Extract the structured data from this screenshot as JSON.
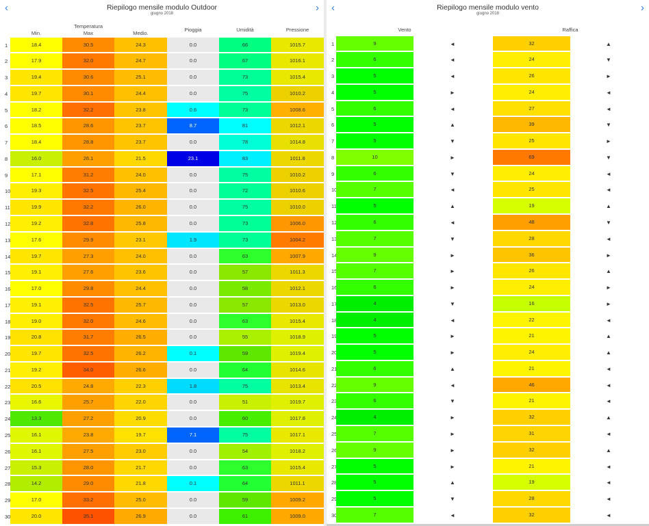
{
  "left": {
    "title": "Riepilogo mensile modulo Outdoor",
    "subtitle": "giugno 2018",
    "prev_label": "‹",
    "next_label": "›",
    "headers": {
      "min": "Min.",
      "max_top": "Temperatura",
      "max": "Max",
      "avg": "Medio.",
      "rain": "Pioggia",
      "hum": "Umidità",
      "press": "Pressione"
    },
    "rows": [
      {
        "day": "1",
        "min": "18.4",
        "max": "30.5",
        "avg": "24.3",
        "rain": "0.0",
        "hum": "66",
        "press": "1015.7"
      },
      {
        "day": "2",
        "min": "17.9",
        "max": "32.0",
        "avg": "24.7",
        "rain": "0.0",
        "hum": "67",
        "press": "1016.1"
      },
      {
        "day": "3",
        "min": "19.4",
        "max": "30.6",
        "avg": "25.1",
        "rain": "0.0",
        "hum": "73",
        "press": "1015.4"
      },
      {
        "day": "4",
        "min": "19.7",
        "max": "30.1",
        "avg": "24.4",
        "rain": "0.0",
        "hum": "75",
        "press": "1010.2"
      },
      {
        "day": "5",
        "min": "18.2",
        "max": "32.2",
        "avg": "23.8",
        "rain": "0.6",
        "hum": "73",
        "press": "1008.6"
      },
      {
        "day": "6",
        "min": "18.5",
        "max": "28.6",
        "avg": "23.7",
        "rain": "8.7",
        "hum": "81",
        "press": "1012.1"
      },
      {
        "day": "7",
        "min": "18.4",
        "max": "28.8",
        "avg": "23.7",
        "rain": "0.0",
        "hum": "78",
        "press": "1014.8"
      },
      {
        "day": "8",
        "min": "16.0",
        "max": "26.1",
        "avg": "21.5",
        "rain": "23.1",
        "hum": "83",
        "press": "1011.8"
      },
      {
        "day": "9",
        "min": "17.1",
        "max": "31.2",
        "avg": "24.0",
        "rain": "0.0",
        "hum": "75",
        "press": "1010.2"
      },
      {
        "day": "10",
        "min": "19.3",
        "max": "32.5",
        "avg": "25.4",
        "rain": "0.0",
        "hum": "72",
        "press": "1010.6"
      },
      {
        "day": "11",
        "min": "19.9",
        "max": "32.2",
        "avg": "26.0",
        "rain": "0.0",
        "hum": "75",
        "press": "1010.0"
      },
      {
        "day": "12",
        "min": "19.2",
        "max": "32.8",
        "avg": "25.8",
        "rain": "0.0",
        "hum": "73",
        "press": "1006.0"
      },
      {
        "day": "13",
        "min": "17.6",
        "max": "29.9",
        "avg": "23.1",
        "rain": "1.9",
        "hum": "73",
        "press": "1004.2"
      },
      {
        "day": "14",
        "min": "19.7",
        "max": "27.3",
        "avg": "24.0",
        "rain": "0.0",
        "hum": "63",
        "press": "1007.9"
      },
      {
        "day": "15",
        "min": "19.1",
        "max": "27.6",
        "avg": "23.6",
        "rain": "0.0",
        "hum": "57",
        "press": "1011.3"
      },
      {
        "day": "16",
        "min": "17.0",
        "max": "29.8",
        "avg": "24.4",
        "rain": "0.0",
        "hum": "58",
        "press": "1012.1"
      },
      {
        "day": "17",
        "min": "19.1",
        "max": "32.5",
        "avg": "25.7",
        "rain": "0.0",
        "hum": "57",
        "press": "1013.0"
      },
      {
        "day": "18",
        "min": "19.0",
        "max": "32.0",
        "avg": "24.6",
        "rain": "0.0",
        "hum": "63",
        "press": "1015.4"
      },
      {
        "day": "19",
        "min": "20.8",
        "max": "31.7",
        "avg": "26.5",
        "rain": "0.0",
        "hum": "55",
        "press": "1018.9"
      },
      {
        "day": "20",
        "min": "19.7",
        "max": "32.5",
        "avg": "26.2",
        "rain": "0.1",
        "hum": "59",
        "press": "1019.4"
      },
      {
        "day": "21",
        "min": "19.2",
        "max": "34.0",
        "avg": "26.6",
        "rain": "0.0",
        "hum": "64",
        "press": "1014.6"
      },
      {
        "day": "22",
        "min": "20.5",
        "max": "24.8",
        "avg": "22.3",
        "rain": "1.8",
        "hum": "75",
        "press": "1013.4"
      },
      {
        "day": "23",
        "min": "16.6",
        "max": "25.7",
        "avg": "22.0",
        "rain": "0.0",
        "hum": "51",
        "press": "1019.7"
      },
      {
        "day": "24",
        "min": "13.3",
        "max": "27.2",
        "avg": "20.9",
        "rain": "0.0",
        "hum": "60",
        "press": "1017.8"
      },
      {
        "day": "25",
        "min": "16.1",
        "max": "23.8",
        "avg": "19.7",
        "rain": "7.1",
        "hum": "75",
        "press": "1017.1"
      },
      {
        "day": "26",
        "min": "16.1",
        "max": "27.5",
        "avg": "23.0",
        "rain": "0.0",
        "hum": "54",
        "press": "1018.2"
      },
      {
        "day": "27",
        "min": "15.3",
        "max": "28.0",
        "avg": "21.7",
        "rain": "0.0",
        "hum": "63",
        "press": "1015.4"
      },
      {
        "day": "28",
        "min": "14.2",
        "max": "29.0",
        "avg": "21.8",
        "rain": "0.1",
        "hum": "64",
        "press": "1011.1"
      },
      {
        "day": "29",
        "min": "17.0",
        "max": "33.2",
        "avg": "25.0",
        "rain": "0.0",
        "hum": "59",
        "press": "1009.2"
      },
      {
        "day": "30",
        "min": "20.0",
        "max": "35.1",
        "avg": "26.9",
        "rain": "0.0",
        "hum": "61",
        "press": "1009.0"
      }
    ]
  },
  "right": {
    "title": "Riepilogo mensile modulo vento",
    "subtitle": "giugno 2018",
    "prev_label": "‹",
    "next_label": "›",
    "headers": {
      "wind": "Vento",
      "gust": "Raffica"
    },
    "rows": [
      {
        "day": "1",
        "wind": "9",
        "wdir": "◄",
        "gust": "32",
        "gdir": "▲"
      },
      {
        "day": "2",
        "wind": "6",
        "wdir": "◄",
        "gust": "24",
        "gdir": "▼"
      },
      {
        "day": "3",
        "wind": "5",
        "wdir": "◄",
        "gust": "26",
        "gdir": "►"
      },
      {
        "day": "4",
        "wind": "5",
        "wdir": "►",
        "gust": "24",
        "gdir": "◄"
      },
      {
        "day": "5",
        "wind": "6",
        "wdir": "◄",
        "gust": "27",
        "gdir": "◄"
      },
      {
        "day": "6",
        "wind": "5",
        "wdir": "▲",
        "gust": "39",
        "gdir": "▼"
      },
      {
        "day": "7",
        "wind": "5",
        "wdir": "▼",
        "gust": "25",
        "gdir": "►"
      },
      {
        "day": "8",
        "wind": "10",
        "wdir": "►",
        "gust": "69",
        "gdir": "▼"
      },
      {
        "day": "9",
        "wind": "6",
        "wdir": "▼",
        "gust": "24",
        "gdir": "◄"
      },
      {
        "day": "10",
        "wind": "7",
        "wdir": "◄",
        "gust": "25",
        "gdir": "◄"
      },
      {
        "day": "11",
        "wind": "5",
        "wdir": "▲",
        "gust": "19",
        "gdir": "▲"
      },
      {
        "day": "12",
        "wind": "6",
        "wdir": "◄",
        "gust": "48",
        "gdir": "▼"
      },
      {
        "day": "13",
        "wind": "7",
        "wdir": "▼",
        "gust": "28",
        "gdir": "◄"
      },
      {
        "day": "14",
        "wind": "9",
        "wdir": "►",
        "gust": "36",
        "gdir": "►"
      },
      {
        "day": "15",
        "wind": "7",
        "wdir": "►",
        "gust": "26",
        "gdir": "▲"
      },
      {
        "day": "16",
        "wind": "6",
        "wdir": "►",
        "gust": "24",
        "gdir": "►"
      },
      {
        "day": "17",
        "wind": "4",
        "wdir": "▼",
        "gust": "16",
        "gdir": "►"
      },
      {
        "day": "18",
        "wind": "4",
        "wdir": "◄",
        "gust": "22",
        "gdir": "◄"
      },
      {
        "day": "19",
        "wind": "5",
        "wdir": "►",
        "gust": "21",
        "gdir": "▲"
      },
      {
        "day": "20",
        "wind": "5",
        "wdir": "►",
        "gust": "24",
        "gdir": "▲"
      },
      {
        "day": "21",
        "wind": "6",
        "wdir": "▲",
        "gust": "21",
        "gdir": "◄"
      },
      {
        "day": "22",
        "wind": "9",
        "wdir": "◄",
        "gust": "46",
        "gdir": "◄"
      },
      {
        "day": "23",
        "wind": "6",
        "wdir": "▼",
        "gust": "21",
        "gdir": "◄"
      },
      {
        "day": "24",
        "wind": "4",
        "wdir": "►",
        "gust": "32",
        "gdir": "▲"
      },
      {
        "day": "25",
        "wind": "7",
        "wdir": "►",
        "gust": "31",
        "gdir": "◄"
      },
      {
        "day": "26",
        "wind": "9",
        "wdir": "►",
        "gust": "32",
        "gdir": "▲"
      },
      {
        "day": "27",
        "wind": "5",
        "wdir": "►",
        "gust": "21",
        "gdir": "◄"
      },
      {
        "day": "28",
        "wind": "5",
        "wdir": "▲",
        "gust": "19",
        "gdir": "◄"
      },
      {
        "day": "29",
        "wind": "5",
        "wdir": "▼",
        "gust": "28",
        "gdir": "◄"
      },
      {
        "day": "30",
        "wind": "7",
        "wdir": "◄",
        "gust": "32",
        "gdir": "◄"
      }
    ]
  },
  "colors": {
    "min": [
      "#ffff00",
      "#ffff00",
      "#ffe600",
      "#ffe600",
      "#ffff00",
      "#ffff00",
      "#ffff00",
      "#c8f000",
      "#ffff00",
      "#ffef00",
      "#ffe600",
      "#ffef00",
      "#ffff00",
      "#ffe600",
      "#ffef00",
      "#ffff00",
      "#ffef00",
      "#ffef00",
      "#ffe200",
      "#ffe600",
      "#ffef00",
      "#ffe200",
      "#e8f700",
      "#4ee800",
      "#dff700",
      "#dff700",
      "#c8f000",
      "#b2ed00",
      "#ffff00",
      "#ffe600"
    ],
    "max": [
      "#ff8c00",
      "#ff7800",
      "#ff8c00",
      "#ff8c00",
      "#ff6e00",
      "#ff9600",
      "#ff9600",
      "#ffa000",
      "#ff7d00",
      "#ff7300",
      "#ff7800",
      "#ff7300",
      "#ff8c00",
      "#ffa000",
      "#ffa000",
      "#ff8c00",
      "#ff7300",
      "#ff7800",
      "#ff7d00",
      "#ff7300",
      "#ff5e00",
      "#ffaa00",
      "#ffa000",
      "#ffa000",
      "#ffaa00",
      "#ffa000",
      "#ff9600",
      "#ff8c00",
      "#ff6e00",
      "#ff5200"
    ],
    "avg": [
      "#ffc000",
      "#ffbc00",
      "#ffbc00",
      "#ffc000",
      "#ffc400",
      "#ffc400",
      "#ffc400",
      "#ffd800",
      "#ffc000",
      "#ffb800",
      "#ffb400",
      "#ffb800",
      "#ffc800",
      "#ffc000",
      "#ffc400",
      "#ffc000",
      "#ffb800",
      "#ffbc00",
      "#ffae00",
      "#ffb400",
      "#ffae00",
      "#ffd000",
      "#ffd400",
      "#ffdc00",
      "#ffe200",
      "#ffcc00",
      "#ffd800",
      "#ffd800",
      "#ffbc00",
      "#ffaa00"
    ],
    "rain_zero": "#e9e9e9",
    "rain": {
      "0.6": "#00ffff",
      "8.7": "#0064ff",
      "23.1": "#0000e6",
      "1.9": "#00e6ff",
      "0.1": "#00ffff",
      "1.8": "#00dcff",
      "7.1": "#0064ff"
    },
    "hum": [
      "#00ff80",
      "#00ff80",
      "#00ff96",
      "#00ffa0",
      "#00ff96",
      "#00ffff",
      "#00ffd7",
      "#00f0ff",
      "#00ffa0",
      "#00ff96",
      "#00ffa0",
      "#00ff96",
      "#00ff96",
      "#2dff2d",
      "#8ae800",
      "#7aea00",
      "#8ae800",
      "#2dff2d",
      "#aaf000",
      "#5ee800",
      "#22ff33",
      "#00ffa0",
      "#c8f000",
      "#48ee00",
      "#00ffa0",
      "#a0f000",
      "#2dff2d",
      "#22ff33",
      "#5ee800",
      "#3cf000"
    ],
    "press": [
      "#e8e800",
      "#e8e800",
      "#e8e800",
      "#ecd000",
      "#ffb000",
      "#ecd800",
      "#e8e000",
      "#ecd800",
      "#ecd000",
      "#ecd000",
      "#ecd000",
      "#ff9800",
      "#ff7c00",
      "#ffa800",
      "#ecd800",
      "#ecd800",
      "#ecd800",
      "#e8e800",
      "#dff000",
      "#dff000",
      "#e8e400",
      "#e8e400",
      "#dff000",
      "#dff000",
      "#e8e800",
      "#dff000",
      "#e8e800",
      "#ecd800",
      "#ffa800",
      "#ffa800"
    ],
    "wind": [
      "#66ff00",
      "#33ff00",
      "#00ff00",
      "#00ff00",
      "#33ff00",
      "#00ff00",
      "#00ff00",
      "#80ff00",
      "#33ff00",
      "#55ff00",
      "#00ff00",
      "#33ff00",
      "#55ff00",
      "#66ff00",
      "#55ff00",
      "#33ff00",
      "#00ee00",
      "#00ee00",
      "#00ff00",
      "#00ff00",
      "#33ff00",
      "#66ff00",
      "#33ff00",
      "#00ee00",
      "#55ff00",
      "#66ff00",
      "#00ff00",
      "#00ff00",
      "#00ff00",
      "#55ff00"
    ],
    "gust": [
      "#ffd000",
      "#ffee00",
      "#ffe600",
      "#ffee00",
      "#ffe000",
      "#ffb800",
      "#ffe600",
      "#ff7800",
      "#ffee00",
      "#ffe600",
      "#d6ff00",
      "#ffa000",
      "#ffd800",
      "#ffc400",
      "#ffe600",
      "#ffee00",
      "#c6ff00",
      "#fff400",
      "#fff400",
      "#ffee00",
      "#fff400",
      "#ffa800",
      "#fff400",
      "#ffd000",
      "#ffd400",
      "#ffd000",
      "#fff400",
      "#d6ff00",
      "#ffd800",
      "#ffd000"
    ]
  }
}
